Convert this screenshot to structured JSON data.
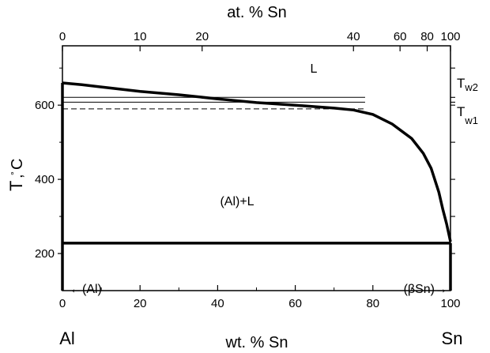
{
  "figure": {
    "top_axis_title": "at. % Sn",
    "top_ticks": [
      {
        "label": "0",
        "wt": 0
      },
      {
        "label": "10",
        "wt": 20
      },
      {
        "label": "20",
        "wt": 36
      },
      {
        "label": "40",
        "wt": 75
      },
      {
        "label": "60",
        "wt": 87
      },
      {
        "label": "80",
        "wt": 94
      },
      {
        "label": "100",
        "wt": 100
      }
    ],
    "bottom_axis_title": "wt. % Sn",
    "bottom_ticks": [
      "0",
      "20",
      "40",
      "60",
      "80",
      "100"
    ],
    "left_axis_title_main": "T",
    "left_axis_title_sep": ",",
    "left_axis_title_unit": "°C",
    "left_ticks": [
      "200",
      "400",
      "600"
    ],
    "element_left": "Al",
    "element_right": "Sn",
    "labels": {
      "liquid": "L",
      "two_phase": "(Al)+L",
      "al_solid": "←(Al)",
      "sn_solid": "(βSn)→",
      "tw2_main": "T",
      "tw2_sub": "w2",
      "tw1_main": "T",
      "tw1_sub": "w1"
    }
  },
  "chart_data": {
    "type": "line",
    "title": "",
    "xlabel": "wt. % Sn",
    "x2label": "at. % Sn",
    "ylabel": "T, °C",
    "xlim": [
      0,
      100
    ],
    "ylim": [
      100,
      760
    ],
    "x_ticks": [
      0,
      20,
      40,
      60,
      80,
      100
    ],
    "y_ticks": [
      200,
      400,
      600
    ],
    "grid": false,
    "series": [
      {
        "kind": "liquidus",
        "x": [
          0,
          5,
          10,
          20,
          30,
          40,
          50,
          60,
          70,
          75,
          80,
          85,
          90,
          93,
          95,
          97,
          98,
          99,
          100
        ],
        "y": [
          660,
          655,
          649,
          637,
          628,
          617,
          607,
          600,
          592,
          587,
          575,
          549,
          510,
          470,
          430,
          365,
          320,
          280,
          232
        ]
      },
      {
        "kind": "eutectic",
        "x": [
          0,
          100
        ],
        "y": [
          228,
          228
        ]
      }
    ],
    "reference_lines": [
      {
        "kind": "Tw2",
        "y": 621,
        "style": "solid"
      },
      {
        "kind": "Tw1-upper",
        "y": 608,
        "style": "solid"
      },
      {
        "kind": "Tw1",
        "y": 590,
        "style": "dashed"
      }
    ]
  }
}
